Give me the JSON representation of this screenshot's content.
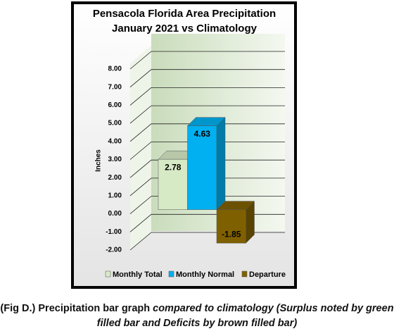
{
  "chart_data": {
    "type": "bar3d",
    "title": [
      "Pensacola Florida Area Precipitation",
      "January 2021 vs Climatology"
    ],
    "y_label": "Inches",
    "series": [
      {
        "name": "Monthly Total",
        "color": "#d7eac6",
        "values": [
          2.78
        ]
      },
      {
        "name": "Monthly Normal",
        "color": "#00b0f0",
        "values": [
          4.63
        ]
      },
      {
        "name": "Departure",
        "color": "#7f6000",
        "values": [
          -1.85
        ]
      }
    ],
    "ylim": [
      -2,
      8
    ],
    "yticks": [
      {
        "value": -2,
        "label": "-2.00"
      },
      {
        "value": -1,
        "label": "-1.00"
      },
      {
        "value": 0,
        "label": "0.00"
      },
      {
        "value": 1,
        "label": "1.00"
      },
      {
        "value": 2,
        "label": "2.00"
      },
      {
        "value": 3,
        "label": "3.00"
      },
      {
        "value": 4,
        "label": "4.00"
      },
      {
        "value": 5,
        "label": "5.00"
      },
      {
        "value": 6,
        "label": "6.00"
      },
      {
        "value": 7,
        "label": "7.00"
      },
      {
        "value": 8,
        "label": "8.00"
      }
    ],
    "grid": true,
    "legend": "bottom"
  },
  "caption": [
    "(Fig D.) Precipitation bar graph",
    "compared to climatology (Surplus noted by green filled bar and Deficits by brown filled bar)"
  ]
}
